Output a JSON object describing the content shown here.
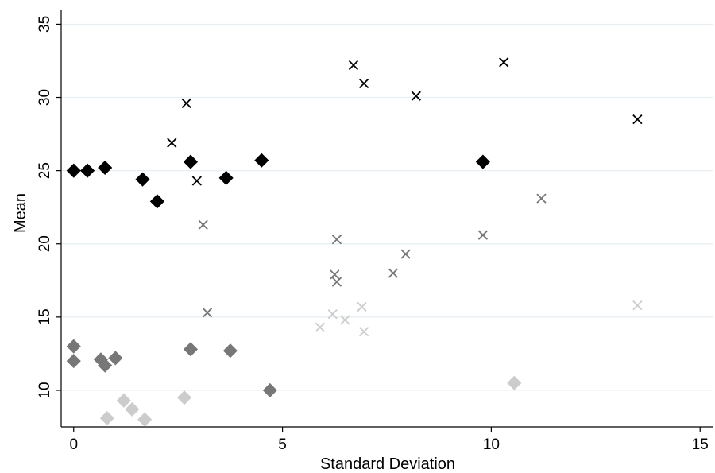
{
  "chart_data": {
    "type": "scatter",
    "xlabel": "Standard Deviation",
    "ylabel": "Mean",
    "xlim": [
      -0.3,
      15.3
    ],
    "ylim": [
      7.5,
      36.0
    ],
    "xticks": [
      0,
      5,
      10,
      15
    ],
    "yticks": [
      10,
      15,
      20,
      25,
      30,
      35
    ],
    "grid": true,
    "legend": "none",
    "series": [
      {
        "marker": "diamond",
        "color": "#000000",
        "points": [
          {
            "x": 0.0,
            "y": 25.0
          },
          {
            "x": 0.33,
            "y": 25.0
          },
          {
            "x": 0.75,
            "y": 25.2
          },
          {
            "x": 1.65,
            "y": 24.4
          },
          {
            "x": 2.0,
            "y": 22.9
          },
          {
            "x": 2.8,
            "y": 25.6
          },
          {
            "x": 3.65,
            "y": 24.5
          },
          {
            "x": 4.5,
            "y": 25.7
          },
          {
            "x": 9.8,
            "y": 25.6
          }
        ]
      },
      {
        "marker": "x",
        "color": "#000000",
        "points": [
          {
            "x": 2.35,
            "y": 26.9
          },
          {
            "x": 2.7,
            "y": 29.6
          },
          {
            "x": 2.95,
            "y": 24.3
          },
          {
            "x": 6.7,
            "y": 32.2
          },
          {
            "x": 6.95,
            "y": 30.95
          },
          {
            "x": 8.2,
            "y": 30.1
          },
          {
            "x": 10.3,
            "y": 32.4
          },
          {
            "x": 13.5,
            "y": 28.5
          }
        ]
      },
      {
        "marker": "diamond",
        "color": "#777777",
        "points": [
          {
            "x": 0.0,
            "y": 13.0
          },
          {
            "x": 0.0,
            "y": 12.0
          },
          {
            "x": 0.65,
            "y": 12.1
          },
          {
            "x": 0.75,
            "y": 11.7
          },
          {
            "x": 1.0,
            "y": 12.2
          },
          {
            "x": 2.8,
            "y": 12.8
          },
          {
            "x": 3.75,
            "y": 12.7
          },
          {
            "x": 4.7,
            "y": 10.0
          }
        ]
      },
      {
        "marker": "x",
        "color": "#777777",
        "points": [
          {
            "x": 3.1,
            "y": 21.3
          },
          {
            "x": 3.2,
            "y": 15.3
          },
          {
            "x": 6.25,
            "y": 17.9
          },
          {
            "x": 6.3,
            "y": 20.3
          },
          {
            "x": 6.3,
            "y": 17.4
          },
          {
            "x": 7.65,
            "y": 18.0
          },
          {
            "x": 7.95,
            "y": 19.3
          },
          {
            "x": 9.8,
            "y": 20.6
          },
          {
            "x": 11.2,
            "y": 23.1
          }
        ]
      },
      {
        "marker": "diamond",
        "color": "#cccccc",
        "points": [
          {
            "x": 0.8,
            "y": 8.1
          },
          {
            "x": 1.2,
            "y": 9.3
          },
          {
            "x": 1.4,
            "y": 8.7
          },
          {
            "x": 1.7,
            "y": 8.0
          },
          {
            "x": 2.65,
            "y": 9.5
          },
          {
            "x": 10.55,
            "y": 10.5
          }
        ]
      },
      {
        "marker": "x",
        "color": "#cccccc",
        "points": [
          {
            "x": 5.9,
            "y": 14.3
          },
          {
            "x": 6.2,
            "y": 15.2
          },
          {
            "x": 6.5,
            "y": 14.8
          },
          {
            "x": 6.9,
            "y": 15.7
          },
          {
            "x": 6.95,
            "y": 14.0
          },
          {
            "x": 13.5,
            "y": 15.8
          }
        ]
      }
    ]
  }
}
